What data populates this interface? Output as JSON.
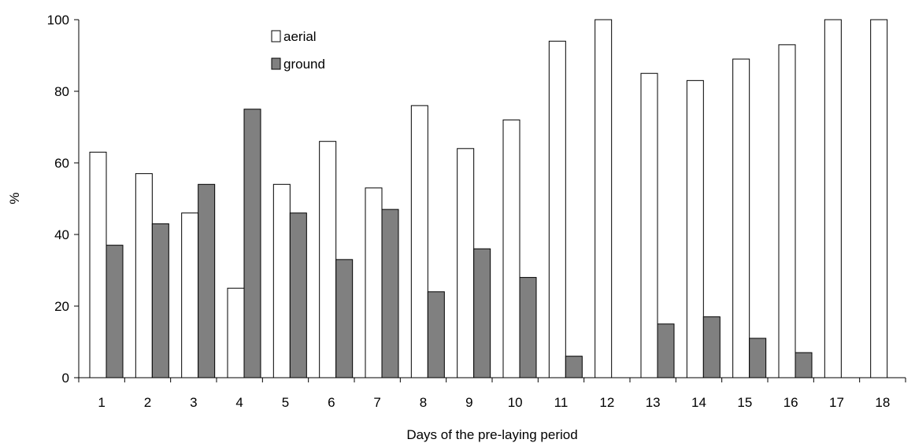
{
  "chart_data": {
    "type": "bar",
    "title": "",
    "xlabel": "Days of the pre-laying period",
    "ylabel": "%",
    "ylim": [
      0,
      100
    ],
    "yticks": [
      0,
      20,
      40,
      60,
      80,
      100
    ],
    "grid": false,
    "legend_position": "top-center",
    "categories": [
      "1",
      "2",
      "3",
      "4",
      "5",
      "6",
      "7",
      "8",
      "9",
      "10",
      "11",
      "12",
      "13",
      "14",
      "15",
      "16",
      "17",
      "18"
    ],
    "series": [
      {
        "name": "aerial",
        "color": "#ffffff",
        "values": [
          63,
          57,
          46,
          25,
          54,
          66,
          53,
          76,
          64,
          72,
          94,
          100,
          85,
          83,
          89,
          93,
          100,
          100
        ]
      },
      {
        "name": "ground",
        "color": "#808080",
        "values": [
          37,
          43,
          54,
          75,
          46,
          33,
          47,
          24,
          36,
          28,
          6,
          0,
          15,
          17,
          11,
          7,
          0,
          0
        ]
      }
    ]
  }
}
